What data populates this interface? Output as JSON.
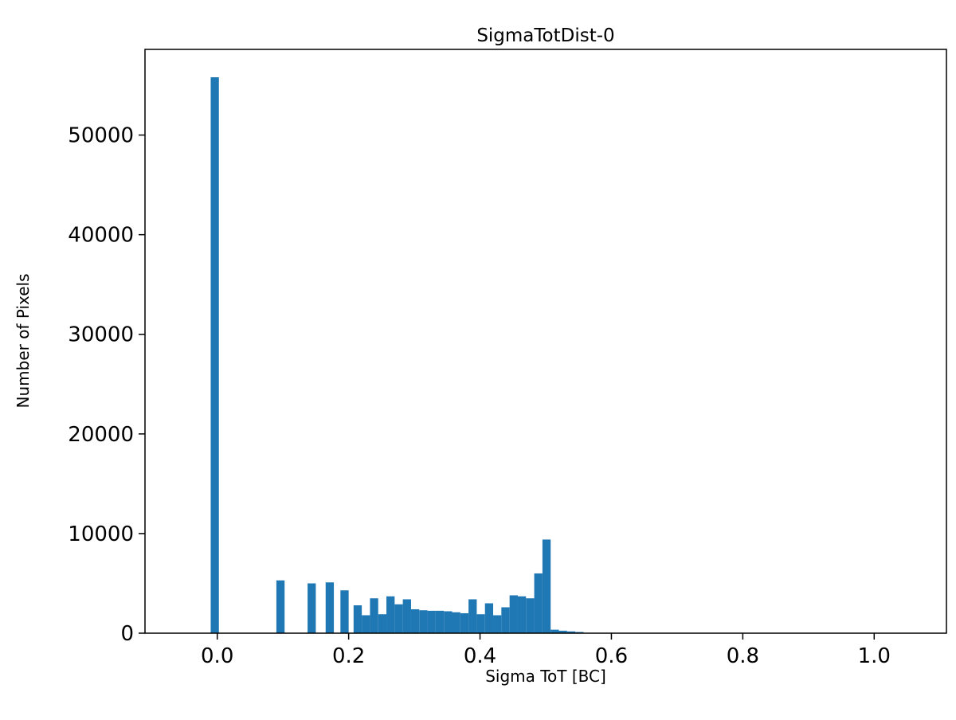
{
  "figure": {
    "background": "#ffffff"
  },
  "chart_data": {
    "type": "bar",
    "title": "SigmaTotDist-0",
    "xlabel": "Sigma ToT [BC]",
    "ylabel": "Number of Pixels",
    "xlim": [
      -0.11,
      1.11
    ],
    "ylim": [
      0,
      58600
    ],
    "grid": false,
    "legend": "none",
    "bar_color": "#1f77b4",
    "bin_width": 0.0125,
    "x_ticks": [
      0.0,
      0.2,
      0.4,
      0.6,
      0.8,
      1.0
    ],
    "x_tick_labels": [
      "0.0",
      "0.2",
      "0.4",
      "0.6",
      "0.8",
      "1.0"
    ],
    "y_ticks": [
      0,
      10000,
      20000,
      30000,
      40000,
      50000
    ],
    "y_tick_labels": [
      "0",
      "10000",
      "20000",
      "30000",
      "40000",
      "50000"
    ],
    "bars": [
      [
        -0.01,
        55800
      ],
      [
        0.09,
        5300
      ],
      [
        0.1375,
        5000
      ],
      [
        0.165,
        5100
      ],
      [
        0.1875,
        4300
      ],
      [
        0.2075,
        2800
      ],
      [
        0.22,
        1800
      ],
      [
        0.2325,
        3500
      ],
      [
        0.245,
        1900
      ],
      [
        0.2575,
        3700
      ],
      [
        0.27,
        2900
      ],
      [
        0.2825,
        3400
      ],
      [
        0.295,
        2400
      ],
      [
        0.3075,
        2300
      ],
      [
        0.32,
        2250
      ],
      [
        0.3325,
        2250
      ],
      [
        0.345,
        2200
      ],
      [
        0.3575,
        2100
      ],
      [
        0.37,
        2000
      ],
      [
        0.3825,
        3400
      ],
      [
        0.395,
        1900
      ],
      [
        0.4075,
        3000
      ],
      [
        0.42,
        1800
      ],
      [
        0.4325,
        2600
      ],
      [
        0.445,
        3800
      ],
      [
        0.4575,
        3700
      ],
      [
        0.47,
        3500
      ],
      [
        0.4825,
        6000
      ],
      [
        0.495,
        9400
      ],
      [
        0.5075,
        350
      ],
      [
        0.52,
        250
      ],
      [
        0.5325,
        180
      ],
      [
        0.545,
        120
      ]
    ]
  }
}
